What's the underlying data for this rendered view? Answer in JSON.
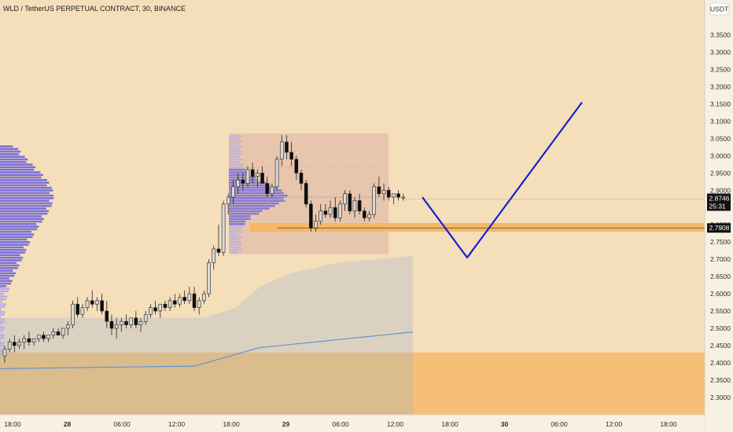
{
  "header": {
    "title": "WLD / TetherUS PERPETUAL CONTRACT, 30, BINANCE",
    "currency_button": "USDT"
  },
  "colors": {
    "background": "#f5deba",
    "axis_panel": "#f8f0e2",
    "candle_up": "#d9d9d9",
    "candle_down": "#0d0d0d",
    "wick": "#222222",
    "volume_profile": "#7b72de",
    "volume_profile_light": "#b5aee8",
    "range_box": "#e7c3ac",
    "demand_zone": "#f6b766",
    "projection_line": "#1720d0",
    "moving_average": "#5b8fd8",
    "band_fill": "#d6cfc2",
    "lower_zone": "#dbb47a",
    "price_tag_bg": "#111111",
    "price_tag_text": "#ffffff"
  },
  "chart_data": {
    "type": "candlestick",
    "symbol": "WLD / TetherUS PERPETUAL CONTRACT",
    "interval": "30",
    "exchange": "BINANCE",
    "ylim": [
      2.27,
      3.39
    ],
    "y_ticks": [
      "3.3500",
      "3.3000",
      "3.2500",
      "3.2000",
      "3.1500",
      "3.1000",
      "3.0500",
      "3.0000",
      "2.9500",
      "2.9000",
      "2.8500",
      "2.8000",
      "2.7500",
      "2.7000",
      "2.6500",
      "2.6000",
      "2.5500",
      "2.5000",
      "2.4500",
      "2.4000",
      "2.3500",
      "2.3000"
    ],
    "x_ticks": [
      {
        "label": "18:00",
        "bold": false
      },
      {
        "label": "28",
        "bold": true
      },
      {
        "label": "06:00",
        "bold": false
      },
      {
        "label": "12:00",
        "bold": false
      },
      {
        "label": "18:00",
        "bold": false
      },
      {
        "label": "29",
        "bold": true
      },
      {
        "label": "06:00",
        "bold": false
      },
      {
        "label": "12:00",
        "bold": false
      },
      {
        "label": "18:00",
        "bold": false
      },
      {
        "label": "30",
        "bold": true
      },
      {
        "label": "06:00",
        "bold": false
      },
      {
        "label": "12:00",
        "bold": false
      },
      {
        "label": "18:00",
        "bold": false
      }
    ],
    "current_price": "2.8746",
    "countdown": "25:31",
    "marked_level": "2.7908",
    "candles": [
      [
        2.42,
        2.45,
        2.4,
        2.44
      ],
      [
        2.44,
        2.47,
        2.43,
        2.46
      ],
      [
        2.46,
        2.48,
        2.43,
        2.45
      ],
      [
        2.45,
        2.47,
        2.44,
        2.46
      ],
      [
        2.46,
        2.48,
        2.44,
        2.47
      ],
      [
        2.47,
        2.49,
        2.45,
        2.46
      ],
      [
        2.46,
        2.47,
        2.45,
        2.47
      ],
      [
        2.47,
        2.48,
        2.46,
        2.48
      ],
      [
        2.48,
        2.49,
        2.46,
        2.47
      ],
      [
        2.47,
        2.48,
        2.46,
        2.48
      ],
      [
        2.48,
        2.5,
        2.47,
        2.49
      ],
      [
        2.49,
        2.5,
        2.48,
        2.48
      ],
      [
        2.48,
        2.5,
        2.47,
        2.5
      ],
      [
        2.5,
        2.52,
        2.48,
        2.51
      ],
      [
        2.51,
        2.58,
        2.5,
        2.57
      ],
      [
        2.57,
        2.59,
        2.53,
        2.54
      ],
      [
        2.54,
        2.57,
        2.53,
        2.56
      ],
      [
        2.56,
        2.59,
        2.55,
        2.58
      ],
      [
        2.58,
        2.61,
        2.56,
        2.57
      ],
      [
        2.57,
        2.59,
        2.55,
        2.58
      ],
      [
        2.58,
        2.6,
        2.54,
        2.55
      ],
      [
        2.55,
        2.58,
        2.5,
        2.52
      ],
      [
        2.52,
        2.54,
        2.48,
        2.5
      ],
      [
        2.5,
        2.53,
        2.47,
        2.51
      ],
      [
        2.51,
        2.53,
        2.49,
        2.52
      ],
      [
        2.52,
        2.54,
        2.5,
        2.51
      ],
      [
        2.51,
        2.53,
        2.5,
        2.53
      ],
      [
        2.53,
        2.55,
        2.5,
        2.51
      ],
      [
        2.51,
        2.53,
        2.49,
        2.52
      ],
      [
        2.52,
        2.55,
        2.51,
        2.54
      ],
      [
        2.54,
        2.57,
        2.53,
        2.56
      ],
      [
        2.56,
        2.58,
        2.54,
        2.55
      ],
      [
        2.55,
        2.57,
        2.53,
        2.57
      ],
      [
        2.57,
        2.58,
        2.55,
        2.56
      ],
      [
        2.56,
        2.59,
        2.55,
        2.58
      ],
      [
        2.58,
        2.6,
        2.56,
        2.57
      ],
      [
        2.57,
        2.6,
        2.56,
        2.59
      ],
      [
        2.59,
        2.61,
        2.57,
        2.58
      ],
      [
        2.58,
        2.62,
        2.57,
        2.6
      ],
      [
        2.6,
        2.62,
        2.55,
        2.56
      ],
      [
        2.56,
        2.59,
        2.54,
        2.58
      ],
      [
        2.58,
        2.61,
        2.57,
        2.6
      ],
      [
        2.6,
        2.7,
        2.59,
        2.69
      ],
      [
        2.69,
        2.74,
        2.67,
        2.73
      ],
      [
        2.73,
        2.8,
        2.71,
        2.72
      ],
      [
        2.72,
        2.87,
        2.71,
        2.86
      ],
      [
        2.86,
        2.89,
        2.83,
        2.88
      ],
      [
        2.88,
        2.93,
        2.86,
        2.91
      ],
      [
        2.91,
        2.95,
        2.89,
        2.93
      ],
      [
        2.93,
        2.95,
        2.9,
        2.92
      ],
      [
        2.92,
        2.97,
        2.91,
        2.96
      ],
      [
        2.96,
        2.98,
        2.92,
        2.94
      ],
      [
        2.94,
        2.96,
        2.91,
        2.95
      ],
      [
        2.95,
        2.97,
        2.93,
        2.92
      ],
      [
        2.92,
        2.94,
        2.88,
        2.89
      ],
      [
        2.89,
        2.92,
        2.88,
        2.91
      ],
      [
        2.91,
        3.0,
        2.9,
        2.99
      ],
      [
        2.99,
        3.06,
        2.97,
        3.04
      ],
      [
        3.04,
        3.06,
        2.99,
        3.01
      ],
      [
        3.01,
        3.04,
        2.97,
        2.99
      ],
      [
        2.99,
        3.0,
        2.93,
        2.95
      ],
      [
        2.95,
        2.96,
        2.9,
        2.92
      ],
      [
        2.92,
        2.93,
        2.85,
        2.86
      ],
      [
        2.86,
        2.87,
        2.78,
        2.79
      ],
      [
        2.79,
        2.83,
        2.78,
        2.81
      ],
      [
        2.81,
        2.86,
        2.8,
        2.84
      ],
      [
        2.84,
        2.86,
        2.82,
        2.83
      ],
      [
        2.83,
        2.87,
        2.82,
        2.85
      ],
      [
        2.85,
        2.88,
        2.81,
        2.82
      ],
      [
        2.82,
        2.87,
        2.81,
        2.86
      ],
      [
        2.86,
        2.9,
        2.84,
        2.89
      ],
      [
        2.89,
        2.9,
        2.83,
        2.84
      ],
      [
        2.84,
        2.88,
        2.82,
        2.87
      ],
      [
        2.87,
        2.89,
        2.83,
        2.84
      ],
      [
        2.84,
        2.85,
        2.81,
        2.82
      ],
      [
        2.82,
        2.84,
        2.81,
        2.83
      ],
      [
        2.83,
        2.92,
        2.82,
        2.91
      ],
      [
        2.91,
        2.94,
        2.88,
        2.89
      ],
      [
        2.89,
        2.92,
        2.87,
        2.9
      ],
      [
        2.9,
        2.91,
        2.87,
        2.88
      ],
      [
        2.88,
        2.89,
        2.86,
        2.89
      ],
      [
        2.89,
        2.9,
        2.87,
        2.88
      ],
      [
        2.88,
        2.89,
        2.87,
        2.88
      ]
    ],
    "annotations": {
      "range_box": {
        "price_top": 3.065,
        "price_bottom": 2.715,
        "from_candle": 42,
        "to_candle_extra": 0
      },
      "demand_zone": {
        "price_top": 2.805,
        "price_bottom": 2.78
      },
      "projection": [
        [
          2.88,
          "now"
        ],
        [
          2.705,
          "mid"
        ],
        [
          3.155,
          "end"
        ]
      ]
    }
  }
}
